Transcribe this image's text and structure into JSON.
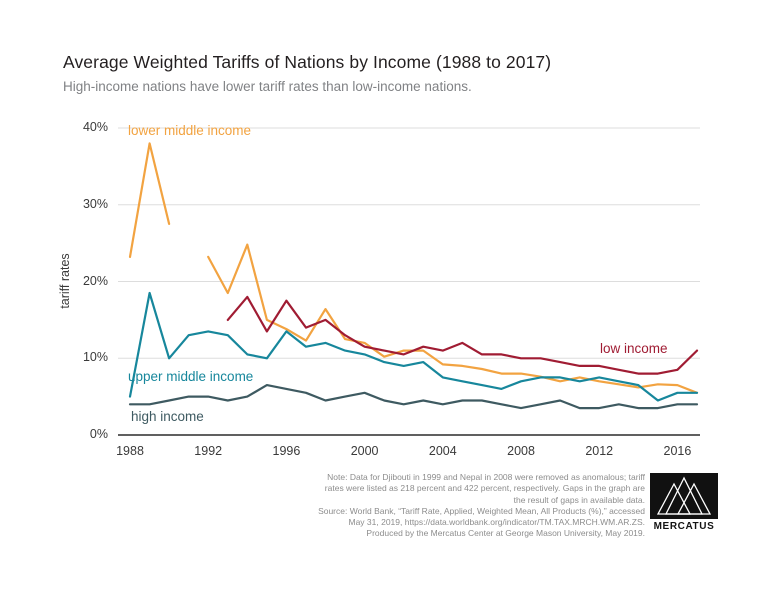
{
  "page": {
    "title": "Average Weighted Tariffs of Nations by Income (1988 to 2017)",
    "subtitle": "High-income nations have lower tariff rates than low-income nations."
  },
  "chart_data": {
    "type": "line",
    "title": "Average Weighted Tariffs of Nations by Income (1988 to 2017)",
    "subtitle": "High-income nations have lower tariff rates than low-income nations.",
    "xlabel": "",
    "ylabel": "tariff rates",
    "xlim": [
      1988,
      2017
    ],
    "ylim": [
      0,
      40
    ],
    "x_ticks": [
      1988,
      1992,
      1996,
      2000,
      2004,
      2008,
      2012,
      2016
    ],
    "y_ticks": [
      0,
      10,
      20,
      30,
      40
    ],
    "y_tick_labels": [
      "0%",
      "10%",
      "20%",
      "30%",
      "40%"
    ],
    "grid": "horizontal",
    "legend": "inline-labels",
    "years": [
      1988,
      1989,
      1990,
      1991,
      1992,
      1993,
      1994,
      1995,
      1996,
      1997,
      1998,
      1999,
      2000,
      2001,
      2002,
      2003,
      2004,
      2005,
      2006,
      2007,
      2008,
      2009,
      2010,
      2011,
      2012,
      2013,
      2014,
      2015,
      2016,
      2017
    ],
    "series": [
      {
        "key": "lower_middle",
        "name": "lower middle income",
        "color": "#F2A341",
        "values": [
          23.2,
          38,
          27.5,
          null,
          23.2,
          18.5,
          24.8,
          15,
          13.8,
          12.3,
          16.4,
          12.5,
          12,
          10.2,
          11,
          11,
          9.2,
          9,
          8.6,
          8,
          8,
          7.6,
          7,
          7.5,
          7,
          6.6,
          6.2,
          6.6,
          6.5,
          5.5
        ]
      },
      {
        "key": "upper_middle",
        "name": "upper middle income",
        "color": "#17879C",
        "values": [
          5,
          18.5,
          10,
          13,
          13.5,
          13,
          10.5,
          10,
          13.5,
          11.5,
          12,
          11,
          10.5,
          9.5,
          9,
          9.5,
          7.5,
          7,
          6.5,
          6,
          7,
          7.5,
          7.5,
          7,
          7.5,
          7,
          6.5,
          4.5,
          5.5,
          5.5
        ]
      },
      {
        "key": "high",
        "name": "high income",
        "color": "#3E5A61",
        "values": [
          4,
          4,
          4.5,
          5,
          5,
          4.5,
          5,
          6.5,
          6,
          5.5,
          4.5,
          5,
          5.5,
          4.5,
          4,
          4.5,
          4,
          4.5,
          4.5,
          4,
          3.5,
          4,
          4.5,
          3.5,
          3.5,
          4,
          3.5,
          3.5,
          4,
          4
        ]
      },
      {
        "key": "low",
        "name": "low income",
        "color": "#A01C33",
        "values": [
          null,
          null,
          null,
          null,
          null,
          15,
          18,
          13.5,
          17.5,
          14,
          15,
          13,
          11.5,
          11,
          10.5,
          11.5,
          11,
          12,
          10.5,
          10.5,
          10,
          10,
          9.5,
          9,
          9,
          8.5,
          8,
          8,
          8.5,
          11
        ]
      }
    ]
  },
  "footer": {
    "notes": [
      "Note: Data for Djibouti in 1999 and Nepal in 2008 were removed as anomalous; tariff",
      "rates were listed as 218 percent and 422 percent, respectively. Gaps in the graph are",
      "the result of gaps in available data.",
      "Source: World Bank, “Tariff Rate, Applied, Weighted Mean, All Products (%),” accessed",
      "May 31, 2019, https://data.worldbank.org/indicator/TM.TAX.MRCH.WM.AR.ZS.",
      "Produced by the Mercatus Center at George Mason University, May 2019."
    ],
    "logo_text": "MERCATUS"
  },
  "colors": {
    "title": "#231F20",
    "subtitle": "#808285",
    "grid": "#DDDDDD",
    "axis": "#2B2B2B",
    "ticks": "#3A3A3A",
    "notes": "#8D8D8D"
  }
}
